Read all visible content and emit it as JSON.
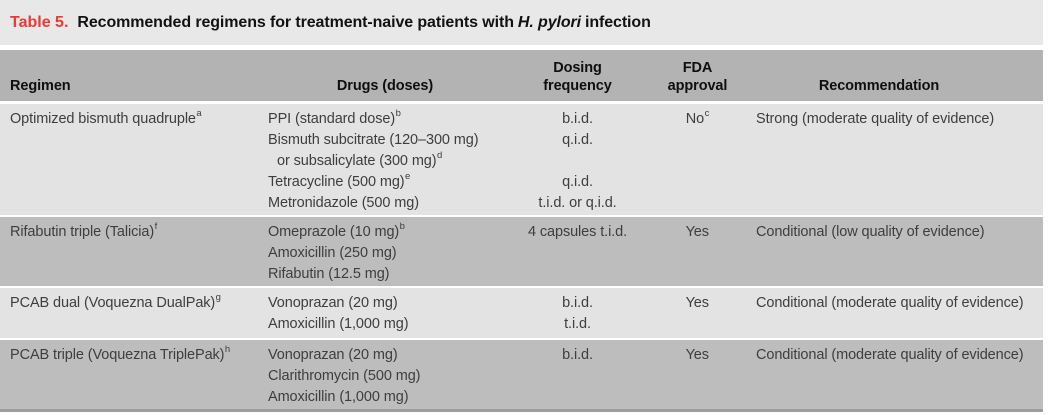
{
  "title": {
    "label": "Table 5.",
    "text": "Recommended regimens for treatment-naive patients with",
    "italic": "H. pylori",
    "suffix": "infection"
  },
  "columns": [
    {
      "label": "Regimen"
    },
    {
      "label": "Drugs (doses)"
    },
    {
      "label": "Dosing frequency"
    },
    {
      "label": "FDA approval"
    },
    {
      "label": "Recommendation"
    }
  ],
  "rows": [
    {
      "regimen": "Optimized bismuth quadruple",
      "regimen_sup": "a",
      "drugs": [
        {
          "text": "PPI (standard dose)",
          "sup": "b"
        },
        {
          "text": "Bismuth subcitrate (120–300 mg)",
          "sup": ""
        },
        {
          "text": "or subsalicylate (300 mg)",
          "sup": "d"
        },
        {
          "text": "Tetracycline (500 mg)",
          "sup": "e"
        },
        {
          "text": "Metronidazole (500 mg)",
          "sup": ""
        }
      ],
      "freqs": [
        "b.i.d.",
        "q.i.d.",
        "",
        "q.i.d.",
        "t.i.d. or q.i.d."
      ],
      "fda": "No",
      "fda_sup": "c",
      "recommendation": "Strong (moderate quality of evidence)"
    },
    {
      "regimen": "Rifabutin triple (Talicia)",
      "regimen_sup": "f",
      "drugs": [
        {
          "text": "Omeprazole (10 mg)",
          "sup": "b"
        },
        {
          "text": "Amoxicillin (250 mg)",
          "sup": ""
        },
        {
          "text": "Rifabutin (12.5 mg)",
          "sup": ""
        }
      ],
      "freqs": [
        "4 capsules t.i.d.",
        "",
        ""
      ],
      "fda": "Yes",
      "fda_sup": "",
      "recommendation": "Conditional (low quality of evidence)"
    },
    {
      "regimen": "PCAB dual (Voquezna DualPak)",
      "regimen_sup": "g",
      "drugs": [
        {
          "text": "Vonoprazan (20 mg)",
          "sup": ""
        },
        {
          "text": "Amoxicillin (1,000 mg)",
          "sup": ""
        }
      ],
      "freqs": [
        "b.i.d.",
        "t.i.d."
      ],
      "fda": "Yes",
      "fda_sup": "",
      "recommendation": "Conditional (moderate quality of evidence)"
    },
    {
      "regimen": "PCAB triple (Voquezna TriplePak)",
      "regimen_sup": "h",
      "drugs": [
        {
          "text": "Vonoprazan (20 mg)",
          "sup": ""
        },
        {
          "text": "Clarithromycin (500 mg)",
          "sup": ""
        },
        {
          "text": "Amoxicillin (1,000 mg)",
          "sup": ""
        }
      ],
      "freqs": [
        "b.i.d.",
        "",
        ""
      ],
      "fda": "Yes",
      "fda_sup": "",
      "recommendation": "Conditional (moderate quality of evidence)"
    }
  ],
  "colors": {
    "accent_red": "#ed3833",
    "title_band_bg": "#e8e8e8",
    "header_bg": "#b3b3b3",
    "row_light_bg": "#e3e3e3",
    "row_dark_bg": "#bdbdbd",
    "bottom_rule": "#9d9d9d",
    "body_text": "#3e3e3e"
  }
}
